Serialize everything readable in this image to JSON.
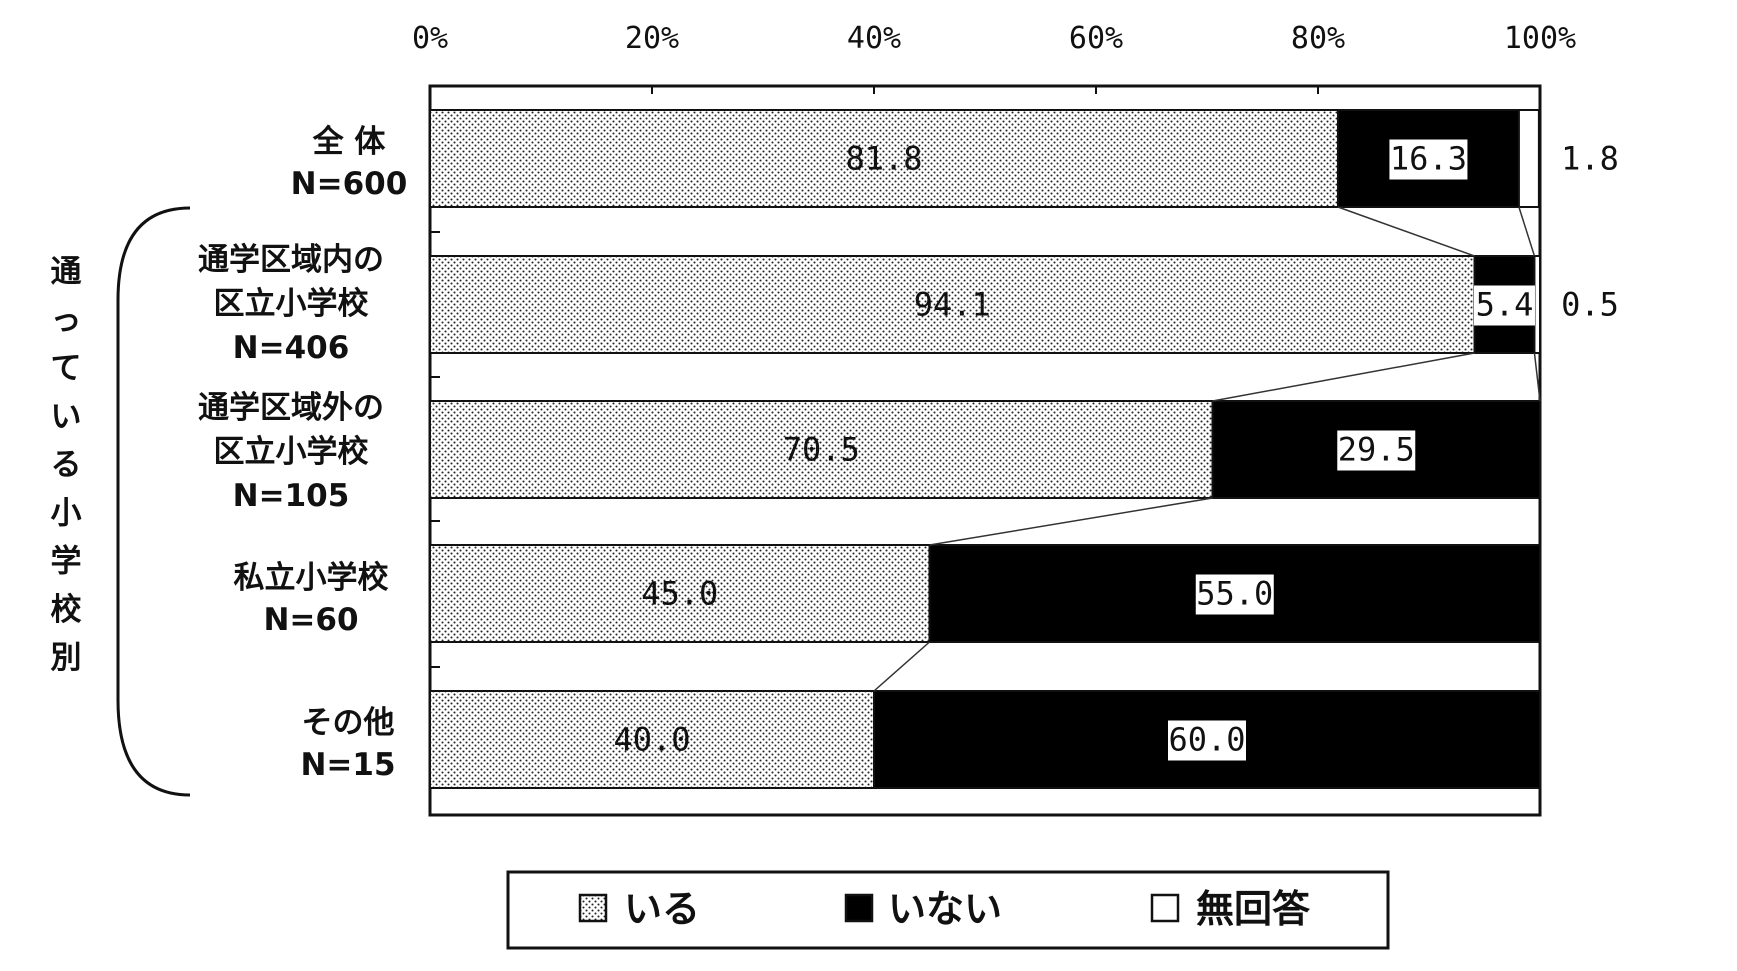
{
  "chart_data": {
    "type": "bar",
    "orientation": "horizontal",
    "stacked": true,
    "percent": true,
    "xlim": [
      0,
      100
    ],
    "x_ticks": [
      "0%",
      "20%",
      "40%",
      "60%",
      "80%",
      "100%"
    ],
    "group_label": "通っている小学校別",
    "categories": [
      {
        "name": "全 体",
        "n": "N=600"
      },
      {
        "name": "通学区域内の 区立小学校",
        "n": "N=406"
      },
      {
        "name": "通学区域外の 区立小学校",
        "n": "N=105"
      },
      {
        "name": "私立小学校",
        "n": "N=60"
      },
      {
        "name": "その他",
        "n": "N=15"
      }
    ],
    "series": [
      {
        "name": "いる",
        "values": [
          81.8,
          94.1,
          70.5,
          45.0,
          40.0
        ],
        "labels": [
          "81.8",
          "94.1",
          "70.5",
          "45.0",
          "40.0"
        ]
      },
      {
        "name": "いない",
        "values": [
          16.3,
          5.4,
          29.5,
          55.0,
          60.0
        ],
        "labels": [
          "16.3",
          "5.4",
          "29.5",
          "55.0",
          "60.0"
        ]
      },
      {
        "name": "無回答",
        "values": [
          1.8,
          0.5,
          0.0,
          0.0,
          0.0
        ],
        "labels": [
          "1.8",
          "0.5",
          "",
          "",
          ""
        ]
      }
    ],
    "legend_position": "bottom",
    "colors": {
      "いる": "#ffffff",
      "いない": "#000000",
      "無回答": "#ffffff"
    }
  }
}
